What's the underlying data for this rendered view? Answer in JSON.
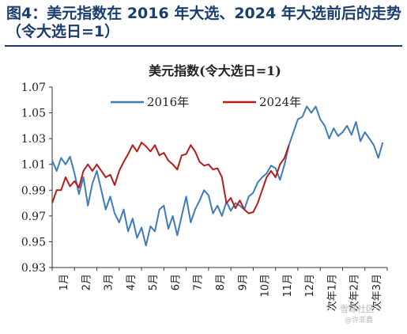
{
  "figure": {
    "title": "图4：美元指数在 2016 年大选、2024 年大选前后的走势（令大选日=1）"
  },
  "watermark": {
    "line1": "雪球社区",
    "line2": "@许亚鑫"
  },
  "colors": {
    "series_2016": "#3e7bbd",
    "series_2024": "#b71c1c",
    "title": "#1a3d6d",
    "axis": "#333333"
  },
  "chart_data": {
    "type": "line",
    "title": "美元指数(令大选日=1)",
    "xlabel": "",
    "ylabel": "",
    "ylim": [
      0.93,
      1.07
    ],
    "yticks": [
      0.93,
      0.95,
      0.97,
      0.99,
      1.01,
      1.03,
      1.05,
      1.07
    ],
    "ytick_labels": [
      "0.93",
      "0.95",
      "0.97",
      "0.99",
      "1.01",
      "1.03",
      "1.05",
      "1.07"
    ],
    "xlim": [
      0,
      15
    ],
    "x_tick_labels": [
      "1月",
      "2月",
      "3月",
      "4月",
      "5月",
      "6月",
      "7月",
      "8月",
      "9月",
      "10月",
      "11月",
      "12月",
      "次年1月",
      "次年2月",
      "次年3月"
    ],
    "x_tick_positions": [
      0.5,
      1.5,
      2.5,
      3.5,
      4.5,
      5.5,
      6.5,
      7.5,
      8.5,
      9.5,
      10.5,
      11.5,
      12.5,
      13.5,
      14.5
    ],
    "grid": false,
    "legend_position": "top",
    "series": [
      {
        "name": "2016年",
        "x": [
          0.0,
          0.2,
          0.4,
          0.6,
          0.8,
          1.0,
          1.2,
          1.4,
          1.6,
          1.8,
          2.0,
          2.2,
          2.4,
          2.6,
          2.8,
          3.0,
          3.2,
          3.4,
          3.6,
          3.8,
          4.0,
          4.2,
          4.4,
          4.6,
          4.8,
          5.0,
          5.2,
          5.4,
          5.6,
          5.8,
          6.0,
          6.2,
          6.4,
          6.6,
          6.8,
          7.0,
          7.2,
          7.4,
          7.6,
          7.8,
          8.0,
          8.2,
          8.4,
          8.6,
          8.8,
          9.0,
          9.2,
          9.4,
          9.6,
          9.8,
          10.0,
          10.2,
          10.4,
          10.6,
          10.8,
          11.0,
          11.2,
          11.4,
          11.6,
          11.8,
          12.0,
          12.2,
          12.4,
          12.6,
          12.8,
          13.0,
          13.2,
          13.4,
          13.6,
          13.8,
          14.0,
          14.2,
          14.4,
          14.6,
          14.8
        ],
        "values": [
          1.013,
          1.005,
          1.015,
          1.01,
          1.016,
          1.003,
          0.987,
          1.0,
          0.978,
          0.995,
          1.005,
          0.99,
          0.975,
          0.985,
          0.972,
          0.965,
          0.975,
          0.958,
          0.968,
          0.953,
          0.961,
          0.947,
          0.962,
          0.958,
          0.975,
          0.978,
          0.96,
          0.97,
          0.955,
          0.97,
          0.985,
          0.965,
          0.975,
          0.982,
          0.99,
          0.986,
          0.972,
          0.978,
          0.97,
          0.981,
          0.974,
          0.98,
          0.978,
          0.975,
          0.985,
          0.988,
          0.996,
          1.0,
          1.003,
          1.009,
          1.007,
          0.998,
          1.01,
          1.025,
          1.035,
          1.045,
          1.047,
          1.055,
          1.05,
          1.055,
          1.045,
          1.04,
          1.03,
          1.038,
          1.032,
          1.035,
          1.04,
          1.033,
          1.043,
          1.028,
          1.035,
          1.03,
          1.025,
          1.015,
          1.027
        ]
      },
      {
        "name": "2024年",
        "x": [
          0.0,
          0.2,
          0.4,
          0.6,
          0.8,
          1.0,
          1.2,
          1.4,
          1.6,
          1.8,
          2.0,
          2.2,
          2.4,
          2.6,
          2.8,
          3.0,
          3.2,
          3.4,
          3.6,
          3.8,
          4.0,
          4.2,
          4.4,
          4.6,
          4.8,
          5.0,
          5.2,
          5.4,
          5.6,
          5.8,
          6.0,
          6.2,
          6.4,
          6.6,
          6.8,
          7.0,
          7.2,
          7.4,
          7.6,
          7.8,
          8.0,
          8.2,
          8.4,
          8.6,
          8.8,
          9.0,
          9.2,
          9.4,
          9.6,
          9.8,
          10.0,
          10.2,
          10.4,
          10.6
        ],
        "values": [
          0.98,
          0.99,
          0.99,
          1.0,
          0.993,
          0.997,
          0.992,
          1.005,
          1.01,
          1.005,
          1.01,
          1.005,
          1.0,
          1.002,
          0.994,
          1.005,
          1.012,
          1.018,
          1.025,
          1.02,
          1.027,
          1.024,
          1.02,
          1.025,
          1.017,
          1.019,
          1.013,
          1.01,
          1.006,
          1.017,
          1.018,
          1.025,
          1.02,
          1.012,
          1.009,
          1.01,
          1.006,
          1.007,
          1.0,
          0.98,
          0.984,
          0.976,
          0.982,
          0.975,
          0.972,
          0.973,
          0.98,
          0.99,
          1.0,
          1.005,
          1.0,
          1.01,
          1.015,
          1.025
        ]
      }
    ]
  }
}
